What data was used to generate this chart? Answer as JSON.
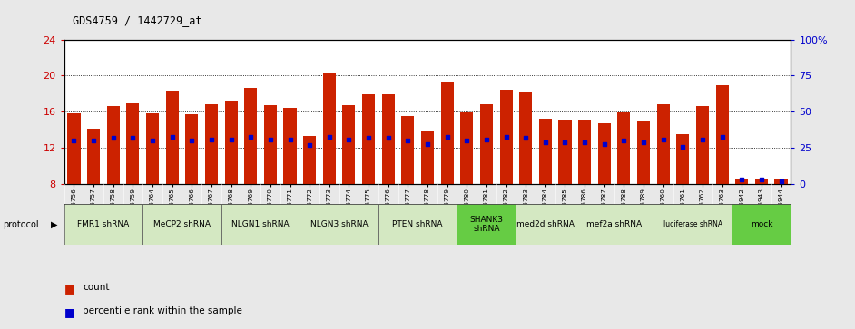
{
  "title": "GDS4759 / 1442729_at",
  "samples": [
    "GSM1145756",
    "GSM1145757",
    "GSM1145758",
    "GSM1145759",
    "GSM1145764",
    "GSM1145765",
    "GSM1145766",
    "GSM1145767",
    "GSM1145768",
    "GSM1145769",
    "GSM1145770",
    "GSM1145771",
    "GSM1145772",
    "GSM1145773",
    "GSM1145774",
    "GSM1145775",
    "GSM1145776",
    "GSM1145777",
    "GSM1145778",
    "GSM1145779",
    "GSM1145780",
    "GSM1145781",
    "GSM1145782",
    "GSM1145783",
    "GSM1145784",
    "GSM1145785",
    "GSM1145786",
    "GSM1145787",
    "GSM1145788",
    "GSM1145789",
    "GSM1145760",
    "GSM1145761",
    "GSM1145762",
    "GSM1145763",
    "GSM1145942",
    "GSM1145943",
    "GSM1145944"
  ],
  "counts": [
    15.8,
    14.1,
    16.6,
    16.9,
    15.8,
    18.3,
    15.7,
    16.8,
    17.2,
    18.6,
    16.7,
    16.4,
    13.3,
    20.3,
    16.7,
    17.9,
    17.9,
    15.5,
    13.8,
    19.2,
    15.9,
    16.8,
    18.4,
    18.1,
    15.2,
    15.1,
    15.1,
    14.7,
    15.9,
    15.0,
    16.8,
    13.5,
    16.6,
    18.9,
    8.6,
    8.6,
    8.5
  ],
  "percentiles": [
    30,
    30,
    32,
    32,
    30,
    33,
    30,
    31,
    31,
    33,
    31,
    31,
    27,
    33,
    31,
    32,
    32,
    30,
    28,
    33,
    30,
    31,
    33,
    32,
    29,
    29,
    29,
    28,
    30,
    29,
    31,
    26,
    31,
    33,
    3,
    3,
    2
  ],
  "protocols": [
    {
      "label": "FMR1 shRNA",
      "start": 0,
      "end": 4,
      "color": "#d4e8c2"
    },
    {
      "label": "MeCP2 shRNA",
      "start": 4,
      "end": 8,
      "color": "#d4e8c2"
    },
    {
      "label": "NLGN1 shRNA",
      "start": 8,
      "end": 12,
      "color": "#d4e8c2"
    },
    {
      "label": "NLGN3 shRNA",
      "start": 12,
      "end": 16,
      "color": "#d4e8c2"
    },
    {
      "label": "PTEN shRNA",
      "start": 16,
      "end": 20,
      "color": "#d4e8c2"
    },
    {
      "label": "SHANK3\nshRNA",
      "start": 20,
      "end": 23,
      "color": "#66cc44"
    },
    {
      "label": "med2d shRNA",
      "start": 23,
      "end": 26,
      "color": "#d4e8c2"
    },
    {
      "label": "mef2a shRNA",
      "start": 26,
      "end": 30,
      "color": "#d4e8c2"
    },
    {
      "label": "luciferase shRNA",
      "start": 30,
      "end": 34,
      "color": "#d4e8c2"
    },
    {
      "label": "mock",
      "start": 34,
      "end": 37,
      "color": "#66cc44"
    }
  ],
  "ylim_left": [
    8,
    24
  ],
  "yticks_left": [
    8,
    12,
    16,
    20,
    24
  ],
  "ylim_right": [
    0,
    100
  ],
  "yticks_right": [
    0,
    25,
    50,
    75,
    100
  ],
  "bar_color": "#cc2200",
  "percentile_color": "#0000cc",
  "bg_color": "#e8e8e8",
  "plot_bg": "#ffffff",
  "ylabel_left_color": "#cc0000",
  "ylabel_right_color": "#0000cc",
  "tick_bg": "#cccccc"
}
